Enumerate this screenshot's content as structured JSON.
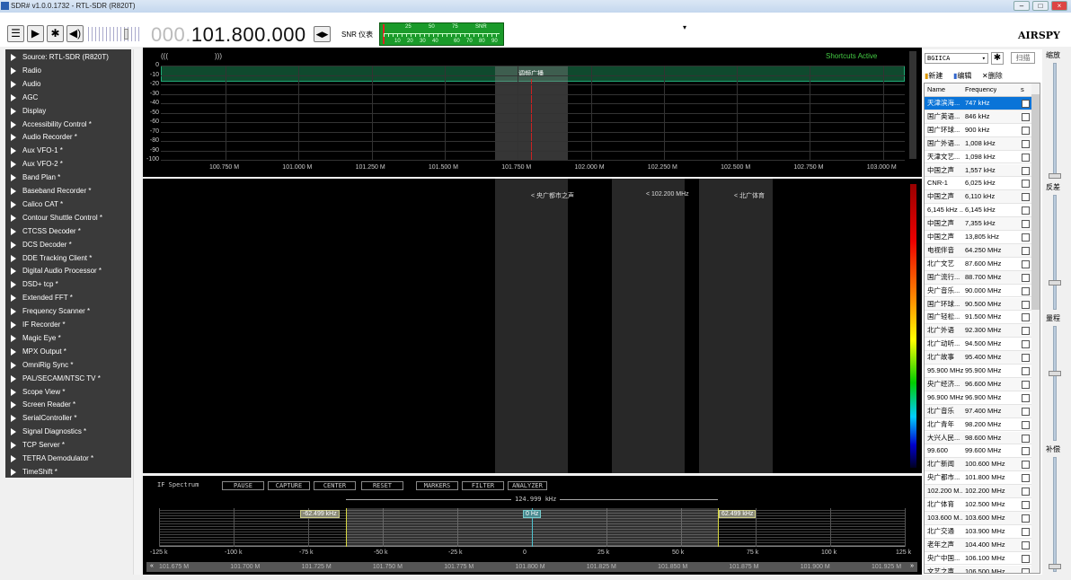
{
  "title": "SDR# v1.0.0.1732 - RTL-SDR (R820T)",
  "toolbar": {
    "freq_dim": "000.",
    "freq_main": "101.800.000",
    "snr_label": "SNR 仪表",
    "snr_scale_top": [
      "25",
      "50",
      "75",
      "SNR"
    ],
    "snr_scale_bottom": [
      "10",
      "20",
      "30",
      "40",
      "60",
      "70",
      "80",
      "90"
    ]
  },
  "left_panel": [
    "Source: RTL-SDR (R820T)",
    "Radio",
    "Audio",
    "AGC",
    "Display",
    "Accessibility Control *",
    "Audio Recorder *",
    "Aux VFO-1 *",
    "Aux VFO-2 *",
    "Band Plan *",
    "Baseband Recorder *",
    "Calico CAT *",
    "Contour Shuttle Control *",
    "CTCSS Decoder *",
    "DCS Decoder *",
    "DDE Tracking Client *",
    "Digital Audio Processor *",
    "DSD+ tcp *",
    "Extended FFT *",
    "Frequency Scanner *",
    "IF Recorder *",
    "Magic Eye *",
    "MPX Output *",
    "OmniRig Sync *",
    "PAL/SECAM/NTSC TV *",
    "Scope View *",
    "Screen Reader *",
    "SerialController *",
    "Signal Diagnostics *",
    "TCP Server *",
    "TETRA Demodulator *",
    "TimeShift *"
  ],
  "spectrum": {
    "zoom_left": "(((",
    "zoom_right": ")))",
    "shortcuts": "Shortcuts Active",
    "band_label": "调频广播",
    "y_ticks": [
      "0",
      "-10",
      "-20",
      "-30",
      "-40",
      "-50",
      "-60",
      "-70",
      "-80",
      "-90",
      "-100"
    ],
    "x_ticks": [
      "100.750 M",
      "101.000 M",
      "101.250 M",
      "101.500 M",
      "101.750 M",
      "102.000 M",
      "102.250 M",
      "102.500 M",
      "102.750 M",
      "103.000 M"
    ]
  },
  "waterfall": {
    "markers": [
      "< 央广都市之声",
      "< 102.200 MHz",
      "< 北广体育"
    ]
  },
  "if_spectrum": {
    "title": "IF Spectrum",
    "buttons": [
      "PAUSE",
      "CAPTURE",
      "CENTER",
      "RESET",
      "MARKERS",
      "FILTER",
      "ANALYZER"
    ],
    "bandwidth": "124.999 kHz",
    "left_edge": "-62.499 kHz",
    "center": "0 Hz",
    "right_edge": "62.499 kHz",
    "x_ticks": [
      "-125 k",
      "-100 k",
      "-75 k",
      "-50 k",
      "-25 k",
      "0",
      "25 k",
      "50 k",
      "75 k",
      "100 k",
      "125 k"
    ],
    "freq_ticks": [
      "101.675 M",
      "101.700 M",
      "101.725 M",
      "101.750 M",
      "101.775 M",
      "101.800 M",
      "101.825 M",
      "101.850 M",
      "101.875 M",
      "101.900 M",
      "101.925 M"
    ],
    "nav_left": "«",
    "nav_right": "»"
  },
  "right_panel": {
    "profile": "BGIICA",
    "scan": "扫描",
    "new": "新建",
    "edit": "编辑",
    "delete": "删除",
    "col_name": "Name",
    "col_freq": "Frequency",
    "col_s": "s",
    "rows": [
      [
        "天津滨海...",
        "747 kHz"
      ],
      [
        "国广英语...",
        "846 kHz"
      ],
      [
        "国广环球...",
        "900 kHz"
      ],
      [
        "国广外语...",
        "1,008 kHz"
      ],
      [
        "天津文艺...",
        "1,098 kHz"
      ],
      [
        "中国之声",
        "1,557 kHz"
      ],
      [
        "CNR-1",
        "6,025 kHz"
      ],
      [
        "中国之声",
        "6,110 kHz"
      ],
      [
        "6,145 kHz ...",
        "6,145 kHz"
      ],
      [
        "中国之声",
        "7,355 kHz"
      ],
      [
        "中国之声",
        "13,805 kHz"
      ],
      [
        "电视伴音",
        "64.250 MHz"
      ],
      [
        "北广文艺",
        "87.600 MHz"
      ],
      [
        "国广流行...",
        "88.700 MHz"
      ],
      [
        "央广音乐...",
        "90.000 MHz"
      ],
      [
        "国广环球...",
        "90.500 MHz"
      ],
      [
        "国广轻松...",
        "91.500 MHz"
      ],
      [
        "北广外语",
        "92.300 MHz"
      ],
      [
        "北广动听...",
        "94.500 MHz"
      ],
      [
        "北广故事",
        "95.400 MHz"
      ],
      [
        "95.900 MHz",
        "95.900 MHz"
      ],
      [
        "央广经济...",
        "96.600 MHz"
      ],
      [
        "96.900 MHz",
        "96.900 MHz"
      ],
      [
        "北广音乐",
        "97.400 MHz"
      ],
      [
        "北广青年",
        "98.200 MHz"
      ],
      [
        "大兴人民...",
        "98.600 MHz"
      ],
      [
        "99.600",
        "99.600 MHz"
      ],
      [
        "北广新闻",
        "100.600 MHz"
      ],
      [
        "央广都市...",
        "101.800 MHz"
      ],
      [
        "102.200 M...",
        "102.200 MHz"
      ],
      [
        "北广体育",
        "102.500 MHz"
      ],
      [
        "103.600 M...",
        "103.600 MHz"
      ],
      [
        "北广交通",
        "103.900 MHz"
      ],
      [
        "老年之声",
        "104.400 MHz"
      ],
      [
        "央广中国...",
        "106.100 MHz"
      ],
      [
        "文艺之声",
        "106.500 MHz"
      ]
    ]
  },
  "sliders": {
    "zoom": "缩放",
    "contrast": "反差",
    "range": "量程",
    "offset": "补偿"
  },
  "brand": "AIRSPY",
  "colors": {
    "accent": "#0a74d8",
    "spectrum_fill": "#0f4a2e",
    "filter_line": "#d8d840",
    "center_line": "#4fc3d0",
    "vfo_line": "#e02020"
  }
}
